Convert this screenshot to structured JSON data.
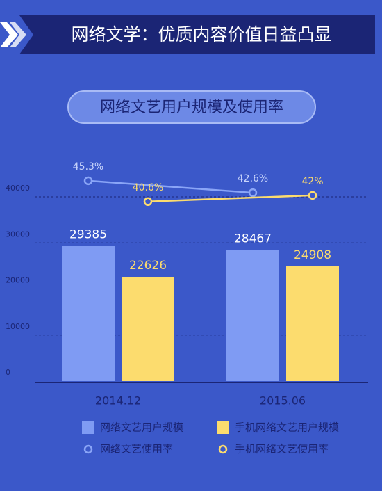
{
  "chart_data": {
    "type": "bar",
    "title": "网络文学：优质内容价值日益凸显",
    "subtitle": "网络文艺用户规模及使用率",
    "categories": [
      "2014.12",
      "2015.06"
    ],
    "series": [
      {
        "name": "网络文艺用户规模",
        "type": "bar",
        "color": "#7f9bf3",
        "values": [
          29385,
          28467
        ]
      },
      {
        "name": "手机网络文艺用户规模",
        "type": "bar",
        "color": "#fcdc6e",
        "values": [
          22626,
          24908
        ]
      },
      {
        "name": "网络文艺使用率",
        "type": "line",
        "axis": "y2",
        "color": "#8aa5f7",
        "values": [
          45.3,
          42.6
        ],
        "value_labels": [
          "45.3%",
          "42.6%"
        ]
      },
      {
        "name": "手机网络文艺使用率",
        "type": "line",
        "axis": "y2",
        "color": "#fcdc6e",
        "values": [
          40.6,
          42
        ],
        "value_labels": [
          "40.6%",
          "42%"
        ]
      }
    ],
    "ylim": [
      0,
      48000
    ],
    "yticks": [
      0,
      10000,
      20000,
      30000,
      40000
    ],
    "y2lim": [
      0,
      50
    ],
    "grid": true
  }
}
